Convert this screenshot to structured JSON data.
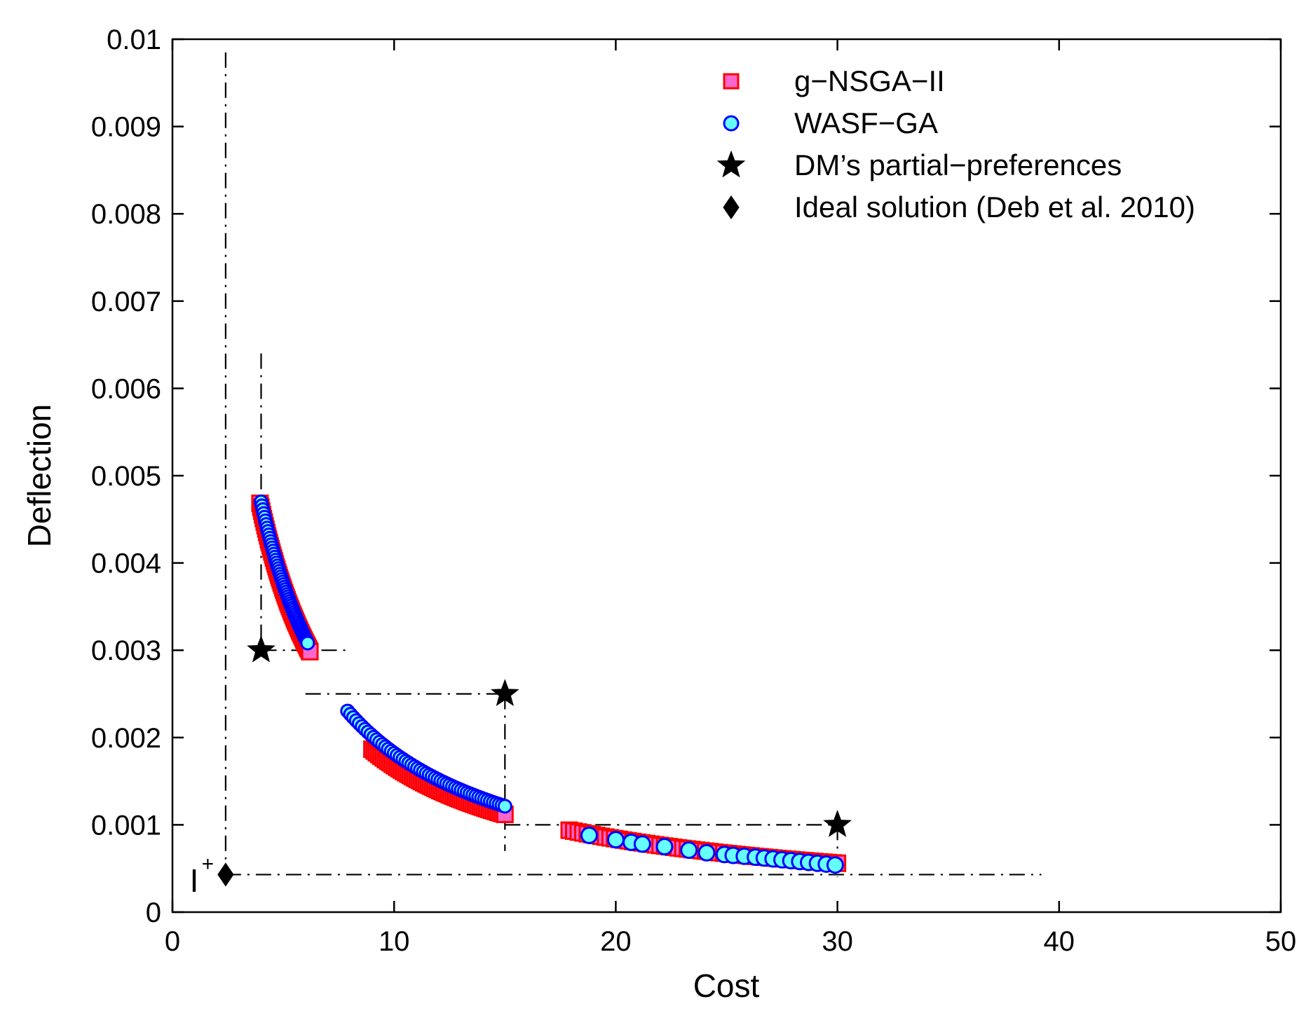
{
  "chart_data": {
    "type": "scatter",
    "title": "",
    "xlabel": "Cost",
    "ylabel": "Deflection",
    "xlim": [
      0,
      50
    ],
    "ylim": [
      0,
      0.01
    ],
    "xticks": [
      0,
      10,
      20,
      30,
      40,
      50
    ],
    "xtick_labels": [
      "0",
      "10",
      "20",
      "30",
      "40",
      "50"
    ],
    "yticks": [
      0,
      0.001,
      0.002,
      0.003,
      0.004,
      0.005,
      0.006,
      0.007,
      0.008,
      0.009,
      0.01
    ],
    "ytick_labels": [
      "0",
      "0.001",
      "0.002",
      "0.003",
      "0.004",
      "0.005",
      "0.006",
      "0.007",
      "0.008",
      "0.009",
      "0.01"
    ],
    "grid": false,
    "legend_position": "top-right",
    "legend": [
      {
        "label": "g−NSGA−II",
        "marker": "square",
        "fill": "#ff66cc",
        "edge": "#ff0000"
      },
      {
        "label": "WASF−GA",
        "marker": "circle",
        "fill": "#66ffff",
        "edge": "#0000ff"
      },
      {
        "label": "DM’s partial−preferences",
        "marker": "star",
        "fill": "#000000",
        "edge": "#000000"
      },
      {
        "label": "Ideal solution (Deb et al. 2010)",
        "marker": "diamond",
        "fill": "#000000",
        "edge": "#000000"
      }
    ],
    "curve_model": "deflection = k / cost",
    "series": [
      {
        "name": "g−NSGA−II",
        "marker": "square",
        "segments": [
          {
            "k": 0.0185,
            "x_start": 3.95,
            "x_end": 6.2,
            "count": 60
          },
          {
            "k": 0.0168,
            "x_start": 9.0,
            "x_end": 15.0,
            "count": 60
          },
          {
            "k": 0.0168,
            "x_start": 17.9,
            "x_end": 30.0,
            "count": 60
          }
        ]
      },
      {
        "name": "WASF−GA",
        "marker": "circle",
        "dense_segments": [
          {
            "k": 0.0188,
            "x_start": 4.0,
            "x_end": 6.1,
            "count": 55
          },
          {
            "k": 0.0182,
            "x_start": 7.9,
            "x_end": 15.0,
            "count": 55
          }
        ],
        "points": [
          [
            18.8,
            0.00088
          ],
          [
            20.0,
            0.00083
          ],
          [
            20.7,
            0.0008
          ],
          [
            21.2,
            0.00078
          ],
          [
            22.2,
            0.00075
          ],
          [
            23.3,
            0.00071
          ],
          [
            24.1,
            0.00068
          ],
          [
            24.9,
            0.00066
          ],
          [
            25.3,
            0.00065
          ],
          [
            25.8,
            0.00064
          ],
          [
            26.3,
            0.00063
          ],
          [
            26.7,
            0.00062
          ],
          [
            27.1,
            0.00061
          ],
          [
            27.5,
            0.0006
          ],
          [
            27.9,
            0.00059
          ],
          [
            28.3,
            0.00058
          ],
          [
            28.7,
            0.00057
          ],
          [
            29.1,
            0.00056
          ],
          [
            29.5,
            0.00055
          ],
          [
            29.9,
            0.00054
          ]
        ]
      }
    ],
    "preference_points": [
      {
        "x": 4.0,
        "y": 0.003
      },
      {
        "x": 15.0,
        "y": 0.0025
      },
      {
        "x": 30.0,
        "y": 0.001
      }
    ],
    "ideal_solution": {
      "x": 2.4,
      "y": 0.00043
    },
    "annotation": {
      "text": "I",
      "superscript": "+",
      "x": 1.0,
      "y": 0.00065
    },
    "reference_lines": [
      {
        "from": [
          2.4,
          0.00985
        ],
        "to": [
          2.4,
          0.00043
        ]
      },
      {
        "from": [
          2.4,
          0.00043
        ],
        "to": [
          39.2,
          0.00043
        ]
      },
      {
        "from": [
          4.0,
          0.0064
        ],
        "to": [
          4.0,
          0.003
        ]
      },
      {
        "from": [
          4.0,
          0.003
        ],
        "to": [
          7.9,
          0.003
        ]
      },
      {
        "from": [
          6.0,
          0.0025
        ],
        "to": [
          15.0,
          0.0025
        ]
      },
      {
        "from": [
          15.0,
          0.0025
        ],
        "to": [
          15.0,
          0.0007
        ]
      },
      {
        "from": [
          15.0,
          0.001
        ],
        "to": [
          30.0,
          0.001
        ]
      },
      {
        "from": [
          30.0,
          0.001
        ],
        "to": [
          30.0,
          0.0004
        ]
      }
    ]
  }
}
